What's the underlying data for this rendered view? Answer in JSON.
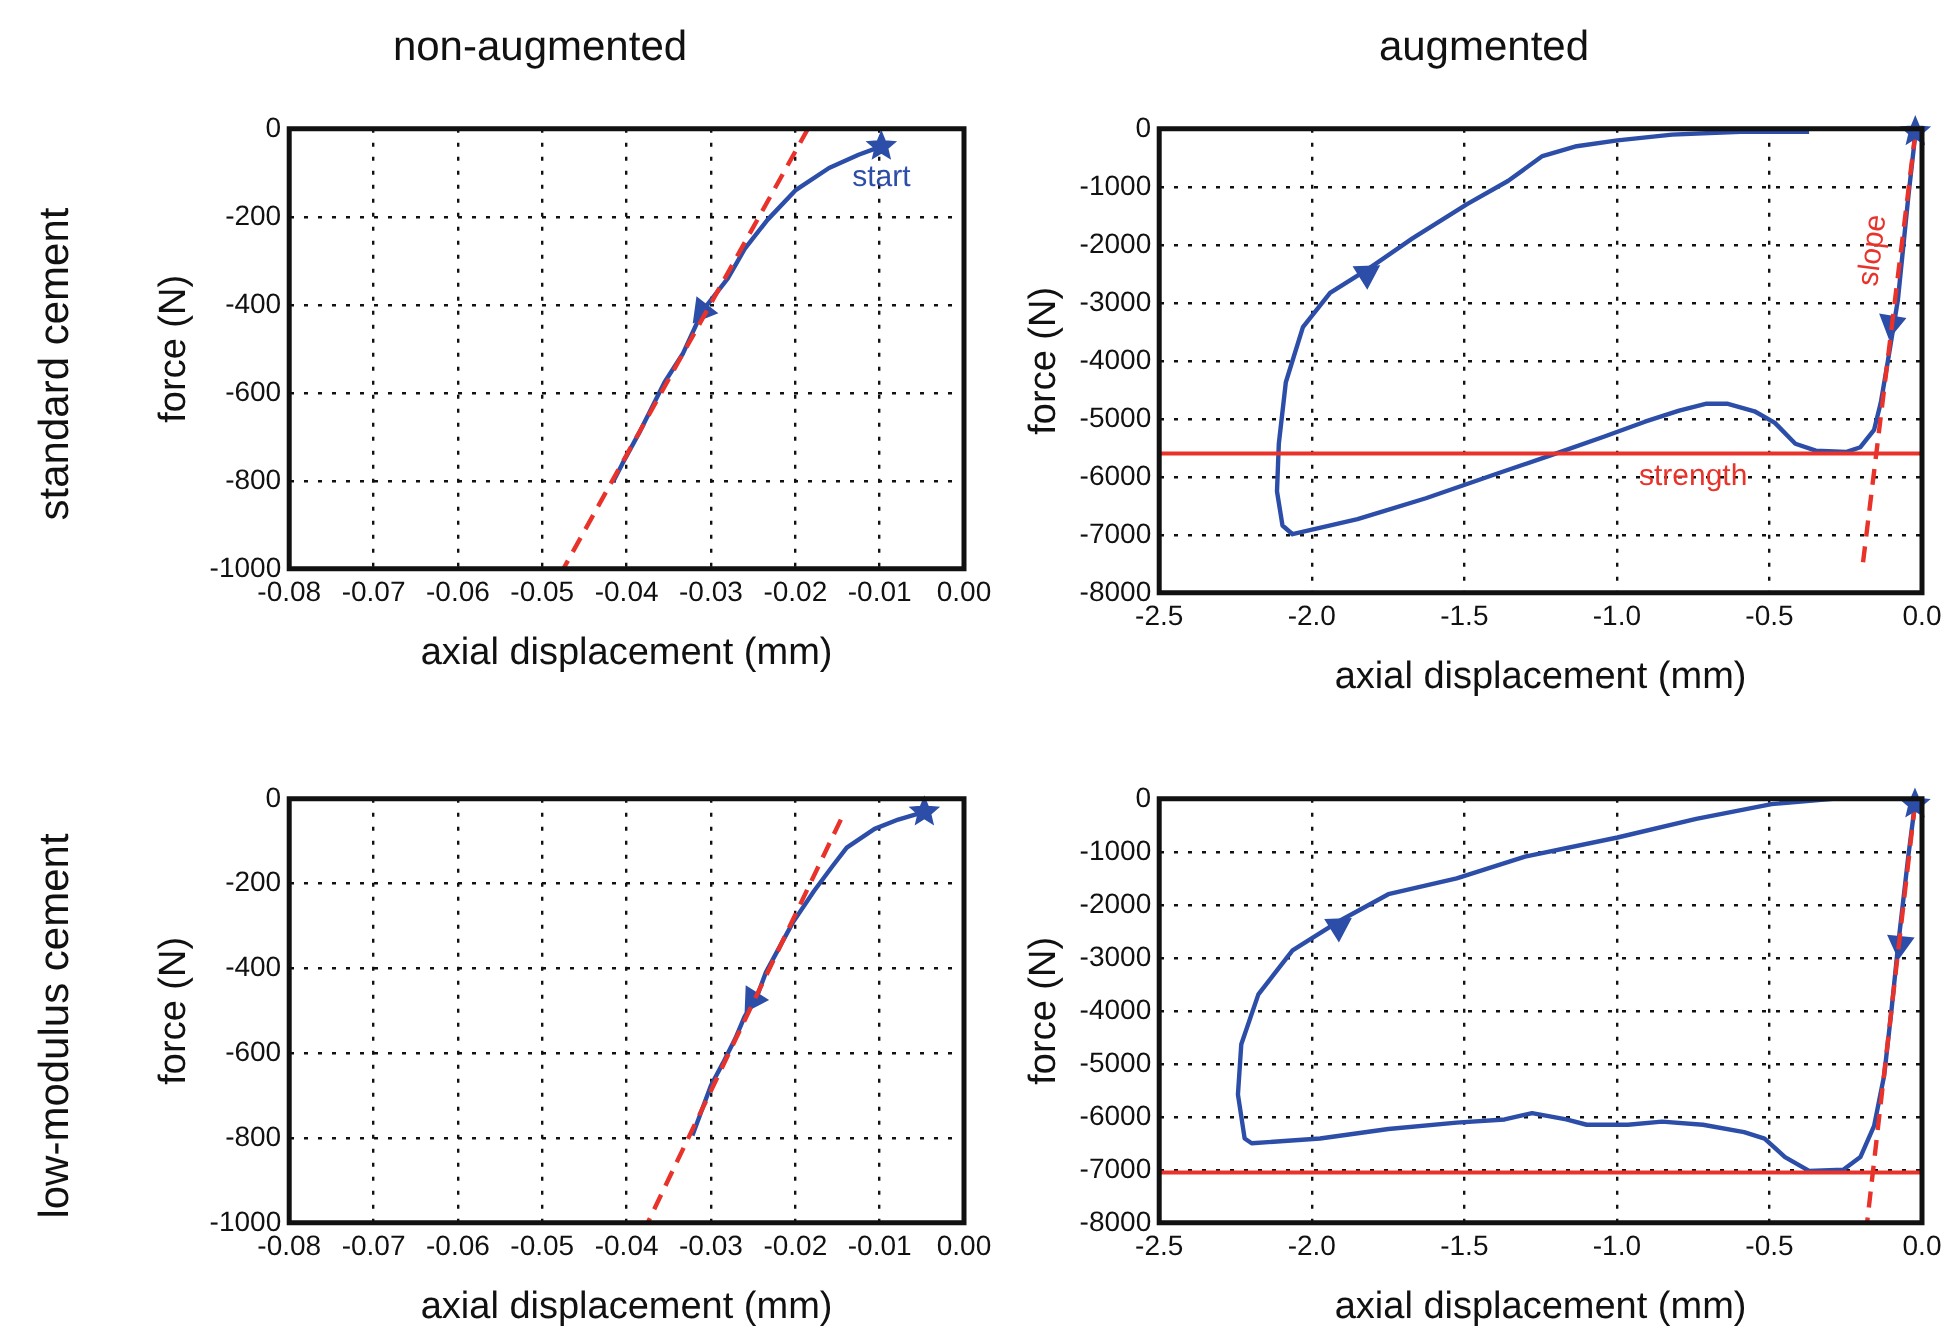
{
  "chart_data": [
    {
      "type": "line",
      "title": "non-augmented",
      "xlabel": "axial displacement (mm)",
      "ylabel": "force (N)",
      "annotations": [
        "standard cement"
      ],
      "xlim": [
        -0.08,
        0
      ],
      "xticks": [
        -0.08,
        -0.07,
        -0.06,
        -0.05,
        -0.04,
        -0.03,
        -0.02,
        -0.01,
        {
          "value": 0,
          "label": "0.00"
        }
      ],
      "ylim": [
        -1000,
        0
      ],
      "yticks": [
        -1000,
        -800,
        -600,
        -400,
        -200,
        0
      ],
      "grid": true,
      "legend": false,
      "series": [
        {
          "type": "line",
          "color": "#e8322a",
          "line_style": "dashed",
          "x": [
            -0.0185,
            -0.0475
          ],
          "values": [
            0,
            -1000
          ]
        },
        {
          "type": "line",
          "color": "#2c4ea8",
          "line_style": "solid",
          "x": [
            -0.0098,
            -0.0125,
            -0.016,
            -0.02,
            -0.0233,
            -0.026,
            -0.028,
            -0.031,
            -0.0333,
            -0.0355,
            -0.0384,
            -0.0405,
            -0.0416
          ],
          "values": [
            -40,
            -59,
            -89,
            -140,
            -207,
            -273,
            -340,
            -414,
            -510,
            -576,
            -687,
            -761,
            -802
          ]
        },
        {
          "type": "scatter",
          "marker": "triangle",
          "color": "#2c4ea8",
          "x": [
            -0.031
          ],
          "values": [
            -414
          ]
        },
        {
          "type": "scatter",
          "marker": "star",
          "name": "start",
          "color": "#2c4ea8",
          "x": [
            -0.0098
          ],
          "values": [
            -40
          ]
        }
      ]
    },
    {
      "type": "line",
      "title": "augmented",
      "xlabel": "axial displacement (mm)",
      "ylabel": "force (N)",
      "xlim": [
        -2.5,
        0
      ],
      "xticks": [
        -2.5,
        {
          "value": -2,
          "label": "-2.0"
        },
        -1.5,
        {
          "value": -1,
          "label": "-1.0"
        },
        -0.5,
        {
          "value": 0,
          "label": "0.0"
        }
      ],
      "ylim": [
        -8000,
        0
      ],
      "yticks": [
        -8000,
        -7000,
        -6000,
        -5000,
        -4000,
        -3000,
        -2000,
        -1000,
        0
      ],
      "grid": true,
      "legend": false,
      "ref_lines": [
        {
          "axis": "y",
          "value": -5600,
          "label": "strength",
          "color": "#e8322a"
        }
      ],
      "series": [
        {
          "type": "line",
          "name": "slope",
          "color": "#e8322a",
          "line_style": "dashed",
          "x": [
            -0.022,
            -0.195
          ],
          "values": [
            -80,
            -7550
          ]
        },
        {
          "type": "line",
          "color": "#2c4ea8",
          "line_style": "solid",
          "x": [
            -0.022,
            -0.045,
            -0.079,
            -0.112,
            -0.135,
            -0.157,
            -0.202,
            -0.247,
            -0.348,
            -0.415,
            -0.482,
            -0.549,
            -0.639,
            -0.706,
            -0.796,
            -0.908,
            -1.043,
            -1.222,
            -1.401,
            -1.626,
            -1.85,
            -2.063,
            -2.096,
            -2.114,
            -2.108,
            -2.085,
            -2.029,
            -1.94,
            -1.816,
            -1.67,
            -1.491,
            -1.357,
            -1.244,
            -1.132,
            -0.998,
            -0.819,
            -0.594,
            -0.37
          ],
          "values": [
            -100,
            -1180,
            -2950,
            -4010,
            -4720,
            -5190,
            -5490,
            -5570,
            -5550,
            -5430,
            -5070,
            -4870,
            -4740,
            -4740,
            -4860,
            -5050,
            -5310,
            -5640,
            -5960,
            -6370,
            -6730,
            -6990,
            -6840,
            -6250,
            -5430,
            -4370,
            -3420,
            -2830,
            -2420,
            -1890,
            -1300,
            -900,
            -470,
            -300,
            -200,
            -100,
            -50,
            -50
          ]
        },
        {
          "type": "scatter",
          "marker": "triangle",
          "color": "#2c4ea8",
          "x": [
            -1.82,
            -0.1
          ],
          "values": [
            -2500,
            -3360
          ]
        },
        {
          "type": "scatter",
          "marker": "star",
          "color": "#2c4ea8",
          "x": [
            -0.022
          ],
          "values": [
            -50
          ]
        }
      ]
    },
    {
      "type": "line",
      "xlabel": "axial displacement (mm)",
      "ylabel": "force (N)",
      "annotations": [
        "low-modulus cement"
      ],
      "xlim": [
        -0.08,
        0
      ],
      "xticks": [
        -0.08,
        -0.07,
        -0.06,
        -0.05,
        -0.04,
        -0.03,
        -0.02,
        -0.01,
        {
          "value": 0,
          "label": "0.00"
        }
      ],
      "ylim": [
        -1000,
        0
      ],
      "yticks": [
        -1000,
        -800,
        -600,
        -400,
        -200,
        0
      ],
      "grid": true,
      "legend": false,
      "series": [
        {
          "type": "line",
          "color": "#e8322a",
          "line_style": "dashed",
          "x": [
            -0.0146,
            -0.0375
          ],
          "values": [
            -49,
            -1000
          ]
        },
        {
          "type": "line",
          "color": "#2c4ea8",
          "line_style": "solid",
          "x": [
            -0.0047,
            -0.0078,
            -0.0106,
            -0.0139,
            -0.0156,
            -0.0178,
            -0.0203,
            -0.0221,
            -0.0235,
            -0.0246,
            -0.026,
            -0.0271,
            -0.0286,
            -0.03,
            -0.0311,
            -0.0322
          ],
          "values": [
            -31,
            -49,
            -71,
            -115,
            -159,
            -218,
            -292,
            -358,
            -410,
            -469,
            -513,
            -565,
            -624,
            -676,
            -735,
            -794
          ]
        },
        {
          "type": "scatter",
          "marker": "triangle",
          "color": "#2c4ea8",
          "x": [
            -0.025
          ],
          "values": [
            -473
          ]
        },
        {
          "type": "scatter",
          "marker": "star",
          "color": "#2c4ea8",
          "x": [
            -0.0047
          ],
          "values": [
            -31
          ]
        }
      ]
    },
    {
      "type": "line",
      "xlabel": "axial displacement (mm)",
      "ylabel": "force (N)",
      "xlim": [
        -2.5,
        0
      ],
      "xticks": [
        -2.5,
        {
          "value": -2,
          "label": "-2.0"
        },
        -1.5,
        {
          "value": -1,
          "label": "-1.0"
        },
        -0.5,
        {
          "value": 0,
          "label": "0.0"
        }
      ],
      "ylim": [
        -8000,
        0
      ],
      "yticks": [
        -8000,
        -7000,
        -6000,
        -5000,
        -4000,
        -3000,
        -2000,
        -1000,
        0
      ],
      "grid": true,
      "legend": false,
      "ref_lines": [
        {
          "axis": "y",
          "value": -7050,
          "color": "#e8322a"
        }
      ],
      "series": [
        {
          "type": "line",
          "color": "#e8322a",
          "line_style": "dashed",
          "x": [
            -0.023,
            -0.18
          ],
          "values": [
            -100,
            -8000
          ]
        },
        {
          "type": "line",
          "color": "#2c4ea8",
          "line_style": "solid",
          "x": [
            -0.023,
            -0.045,
            -0.079,
            -0.101,
            -0.124,
            -0.157,
            -0.202,
            -0.258,
            -0.37,
            -0.449,
            -0.516,
            -0.583,
            -0.718,
            -0.852,
            -0.964,
            -1.099,
            -1.166,
            -1.278,
            -1.368,
            -1.525,
            -1.749,
            -1.973,
            -2.197,
            -2.22,
            -2.242,
            -2.231,
            -2.175,
            -2.063,
            -1.917,
            -1.749,
            -1.525,
            -1.301,
            -0.998,
            -0.74,
            -0.493,
            -0.292
          ],
          "values": [
            -100,
            -1090,
            -2800,
            -4040,
            -5220,
            -6170,
            -6760,
            -7000,
            -7020,
            -6760,
            -6410,
            -6290,
            -6150,
            -6090,
            -6150,
            -6150,
            -6050,
            -5930,
            -6050,
            -6110,
            -6230,
            -6410,
            -6500,
            -6410,
            -5580,
            -4630,
            -3690,
            -2860,
            -2330,
            -1800,
            -1500,
            -1090,
            -730,
            -380,
            -100,
            0
          ]
        },
        {
          "type": "scatter",
          "marker": "triangle",
          "color": "#2c4ea8",
          "x": [
            -1.913,
            -0.072
          ],
          "values": [
            -2410,
            -2740
          ]
        },
        {
          "type": "scatter",
          "marker": "star",
          "color": "#2c4ea8",
          "x": [
            -0.023
          ],
          "values": [
            -100
          ]
        }
      ]
    }
  ]
}
